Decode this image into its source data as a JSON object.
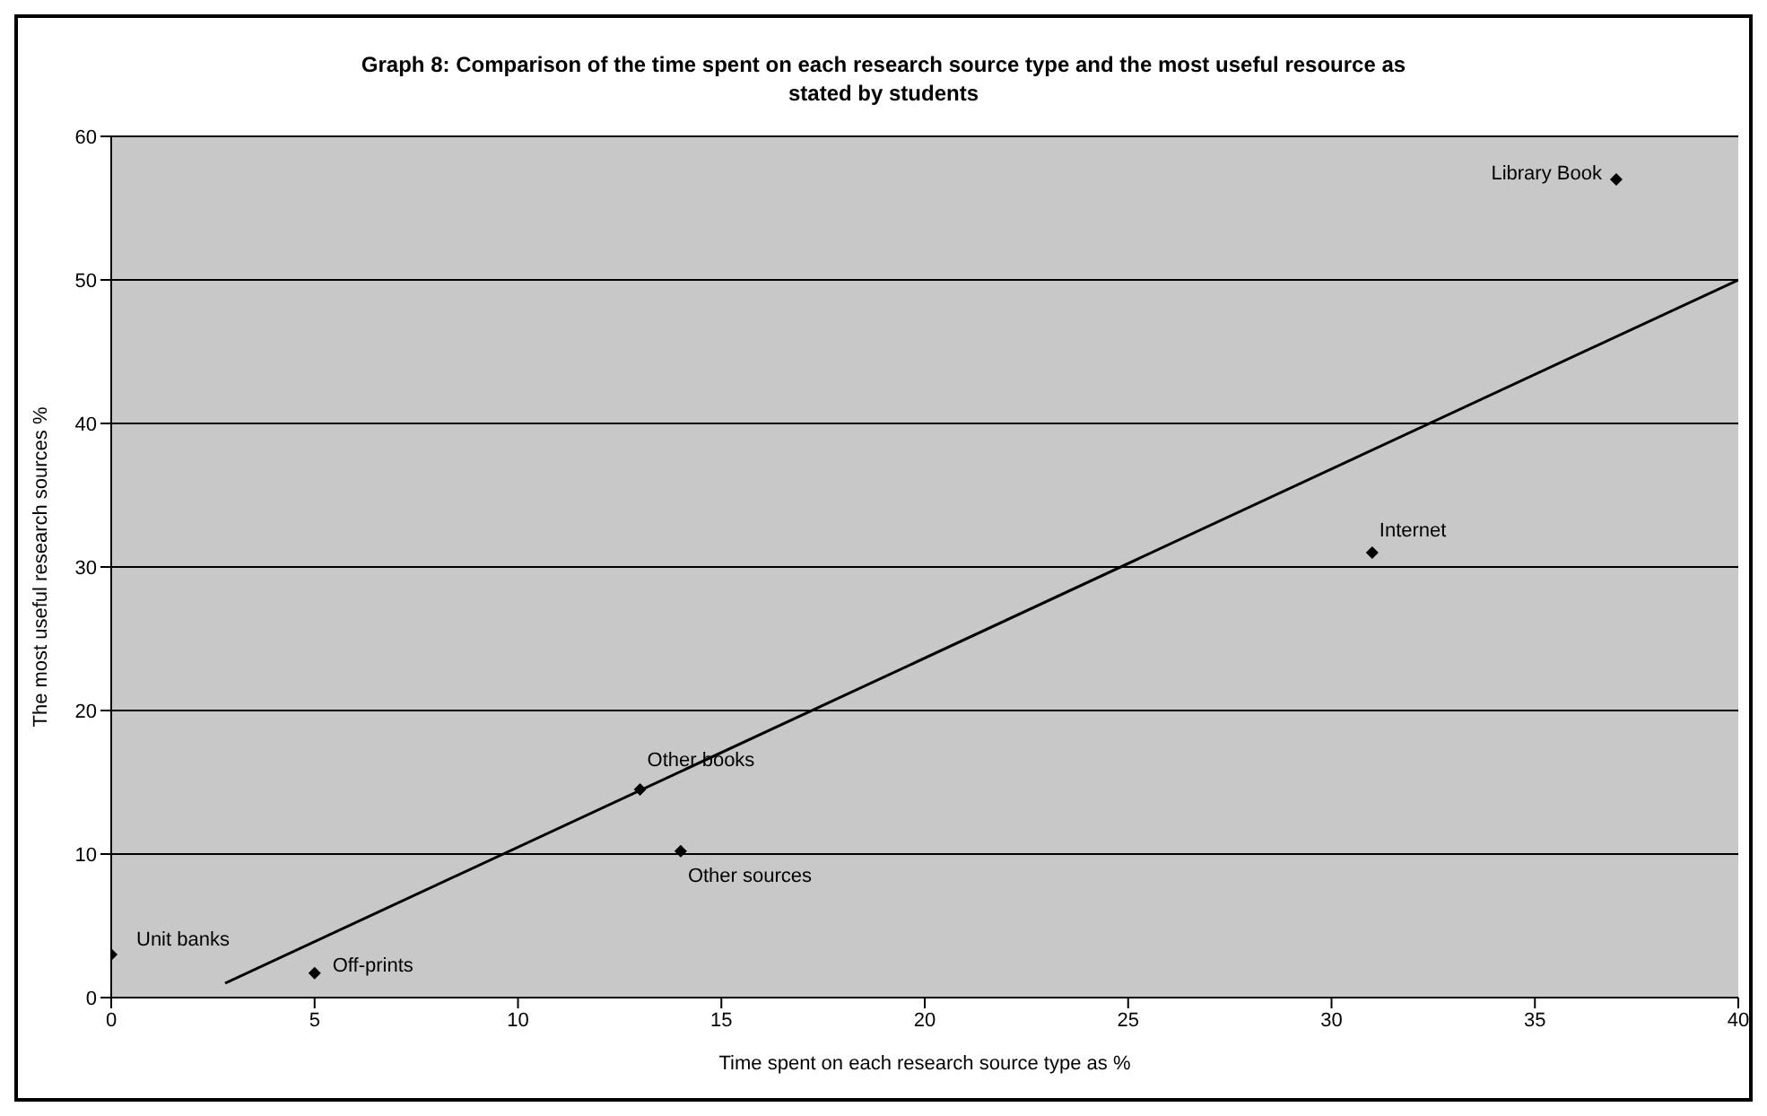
{
  "chart_data": {
    "type": "scatter",
    "title": "Graph 8: Comparison of the time spent on each research source type and the most useful resource as stated by students",
    "xlabel": "Time spent on each research source type as %",
    "ylabel": "The most useful research sources %",
    "series": [
      {
        "color": "#000000",
        "x": [
          0,
          5,
          13,
          14,
          31,
          37
        ],
        "values": [
          3,
          1.7,
          14.5,
          10.2,
          31,
          57
        ],
        "marker": "diamond"
      },
      {
        "type": "line",
        "color": "#000000",
        "x": [
          2.8,
          40
        ],
        "values": [
          1,
          50
        ],
        "marker": "none",
        "line_style": "solid"
      }
    ],
    "annotations": [
      {
        "text": "Unit banks",
        "x": 0,
        "y": 3
      },
      {
        "text": "Off-prints",
        "x": 5,
        "y": 1.7
      },
      {
        "text": "Other books",
        "x": 13,
        "y": 14.5
      },
      {
        "text": "Other sources",
        "x": 14,
        "y": 10.2
      },
      {
        "text": "Internet",
        "x": 31,
        "y": 31
      },
      {
        "text": "Library Book",
        "x": 37,
        "y": 57
      }
    ],
    "xlim": [
      0,
      40
    ],
    "xticks": [
      0,
      5,
      10,
      15,
      20,
      25,
      30,
      35,
      40
    ],
    "ylim": [
      0,
      60
    ],
    "yticks": [
      0,
      10,
      20,
      30,
      40,
      50,
      60
    ],
    "grid": "y",
    "legend": false
  }
}
